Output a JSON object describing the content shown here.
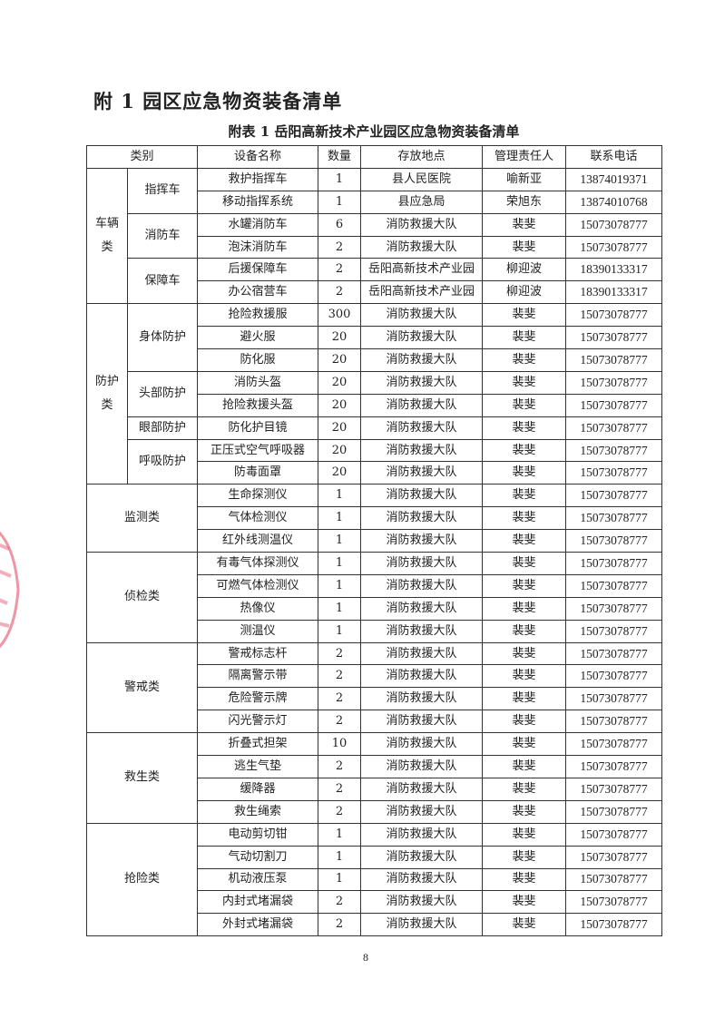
{
  "heading": "附 1  园区应急物资装备清单",
  "caption": "附表 1 岳阳高新技术产业园区应急物资装备清单",
  "columns": [
    "类别",
    "设备名称",
    "数量",
    "存放地点",
    "管理责任人",
    "联系电话"
  ],
  "categories": [
    {
      "name": "车辆类",
      "subgroups": [
        {
          "name": "指挥车",
          "items": [
            [
              "救护指挥车",
              "1",
              "县人民医院",
              "喻新亚",
              "13874019371"
            ],
            [
              "移动指挥系统",
              "1",
              "县应急局",
              "荣旭东",
              "13874010768"
            ]
          ]
        },
        {
          "name": "消防车",
          "items": [
            [
              "水罐消防车",
              "6",
              "消防救援大队",
              "裴斐",
              "15073078777"
            ],
            [
              "泡沫消防车",
              "2",
              "消防救援大队",
              "裴斐",
              "15073078777"
            ]
          ]
        },
        {
          "name": "保障车",
          "items": [
            [
              "后援保障车",
              "2",
              "岳阳高新技术产业园",
              "柳迎波",
              "18390133317"
            ],
            [
              "办公宿营车",
              "2",
              "岳阳高新技术产业园",
              "柳迎波",
              "18390133317"
            ]
          ]
        }
      ]
    },
    {
      "name": "防护类",
      "subgroups": [
        {
          "name": "身体防护",
          "items": [
            [
              "抢险救援服",
              "300",
              "消防救援大队",
              "裴斐",
              "15073078777"
            ],
            [
              "避火服",
              "20",
              "消防救援大队",
              "裴斐",
              "15073078777"
            ],
            [
              "防化服",
              "20",
              "消防救援大队",
              "裴斐",
              "15073078777"
            ]
          ]
        },
        {
          "name": "头部防护",
          "items": [
            [
              "消防头盔",
              "20",
              "消防救援大队",
              "裴斐",
              "15073078777"
            ],
            [
              "抢险救援头盔",
              "20",
              "消防救援大队",
              "裴斐",
              "15073078777"
            ]
          ]
        },
        {
          "name": "眼部防护",
          "items": [
            [
              "防化护目镜",
              "20",
              "消防救援大队",
              "裴斐",
              "15073078777"
            ]
          ]
        },
        {
          "name": "呼吸防护",
          "items": [
            [
              "正压式空气呼吸器",
              "20",
              "消防救援大队",
              "裴斐",
              "15073078777"
            ],
            [
              "防毒面罩",
              "20",
              "消防救援大队",
              "裴斐",
              "15073078777"
            ]
          ]
        }
      ]
    },
    {
      "name": "监测类",
      "items": [
        [
          "生命探测仪",
          "1",
          "消防救援大队",
          "裴斐",
          "15073078777"
        ],
        [
          "气体检测仪",
          "1",
          "消防救援大队",
          "裴斐",
          "15073078777"
        ],
        [
          "红外线测温仪",
          "1",
          "消防救援大队",
          "裴斐",
          "15073078777"
        ]
      ]
    },
    {
      "name": "侦检类",
      "items": [
        [
          "有毒气体探测仪",
          "1",
          "消防救援大队",
          "裴斐",
          "15073078777"
        ],
        [
          "可燃气体检测仪",
          "1",
          "消防救援大队",
          "裴斐",
          "15073078777"
        ],
        [
          "热像仪",
          "1",
          "消防救援大队",
          "裴斐",
          "15073078777"
        ],
        [
          "测温仪",
          "1",
          "消防救援大队",
          "裴斐",
          "15073078777"
        ]
      ]
    },
    {
      "name": "警戒类",
      "items": [
        [
          "警戒标志杆",
          "2",
          "消防救援大队",
          "裴斐",
          "15073078777"
        ],
        [
          "隔离警示带",
          "2",
          "消防救援大队",
          "裴斐",
          "15073078777"
        ],
        [
          "危险警示牌",
          "2",
          "消防救援大队",
          "裴斐",
          "15073078777"
        ],
        [
          "闪光警示灯",
          "2",
          "消防救援大队",
          "裴斐",
          "15073078777"
        ]
      ]
    },
    {
      "name": "救生类",
      "items": [
        [
          "折叠式担架",
          "10",
          "消防救援大队",
          "裴斐",
          "15073078777"
        ],
        [
          "逃生气垫",
          "2",
          "消防救援大队",
          "裴斐",
          "15073078777"
        ],
        [
          "缓降器",
          "2",
          "消防救援大队",
          "裴斐",
          "15073078777"
        ],
        [
          "救生绳索",
          "2",
          "消防救援大队",
          "裴斐",
          "15073078777"
        ]
      ]
    },
    {
      "name": "抢险类",
      "items": [
        [
          "电动剪切钳",
          "1",
          "消防救援大队",
          "裴斐",
          "15073078777"
        ],
        [
          "气动切割刀",
          "1",
          "消防救援大队",
          "裴斐",
          "15073078777"
        ],
        [
          "机动液压泵",
          "1",
          "消防救援大队",
          "裴斐",
          "15073078777"
        ],
        [
          "内封式堵漏袋",
          "2",
          "消防救援大队",
          "裴斐",
          "15073078777"
        ],
        [
          "外封式堵漏袋",
          "2",
          "消防救援大队",
          "裴斐",
          "15073078777"
        ]
      ]
    }
  ],
  "page_number": "8",
  "colors": {
    "seal": "#e0506a"
  }
}
